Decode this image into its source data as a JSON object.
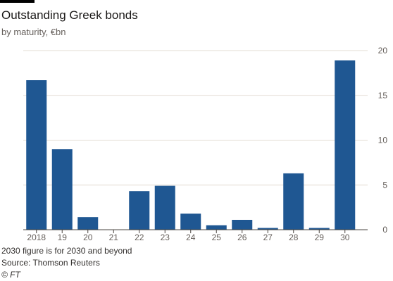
{
  "title": "Outstanding Greek bonds",
  "subtitle": "by maturity, €bn",
  "footnote": "2030 figure is for 2030 and beyond",
  "source": "Source: Thomson Reuters",
  "credit": "© FT",
  "colors": {
    "bar": "#1f5792",
    "grid": "#e3dcd3",
    "axis": "#4a4540",
    "tick_text": "#66605c"
  },
  "chart_data": {
    "type": "bar",
    "title": "Outstanding Greek bonds",
    "subtitle": "by maturity, €bn",
    "categories": [
      "2018",
      "19",
      "20",
      "21",
      "22",
      "23",
      "24",
      "25",
      "26",
      "27",
      "28",
      "29",
      "30"
    ],
    "values": [
      16.7,
      9.0,
      1.4,
      0,
      4.3,
      4.9,
      1.8,
      0.5,
      1.1,
      0.2,
      6.3,
      0.2,
      18.9
    ],
    "ylim": [
      0,
      20
    ],
    "yticks": [
      0,
      5,
      10,
      15,
      20
    ],
    "y_axis_position": "right",
    "grid": true,
    "xlabel": "",
    "ylabel": ""
  }
}
